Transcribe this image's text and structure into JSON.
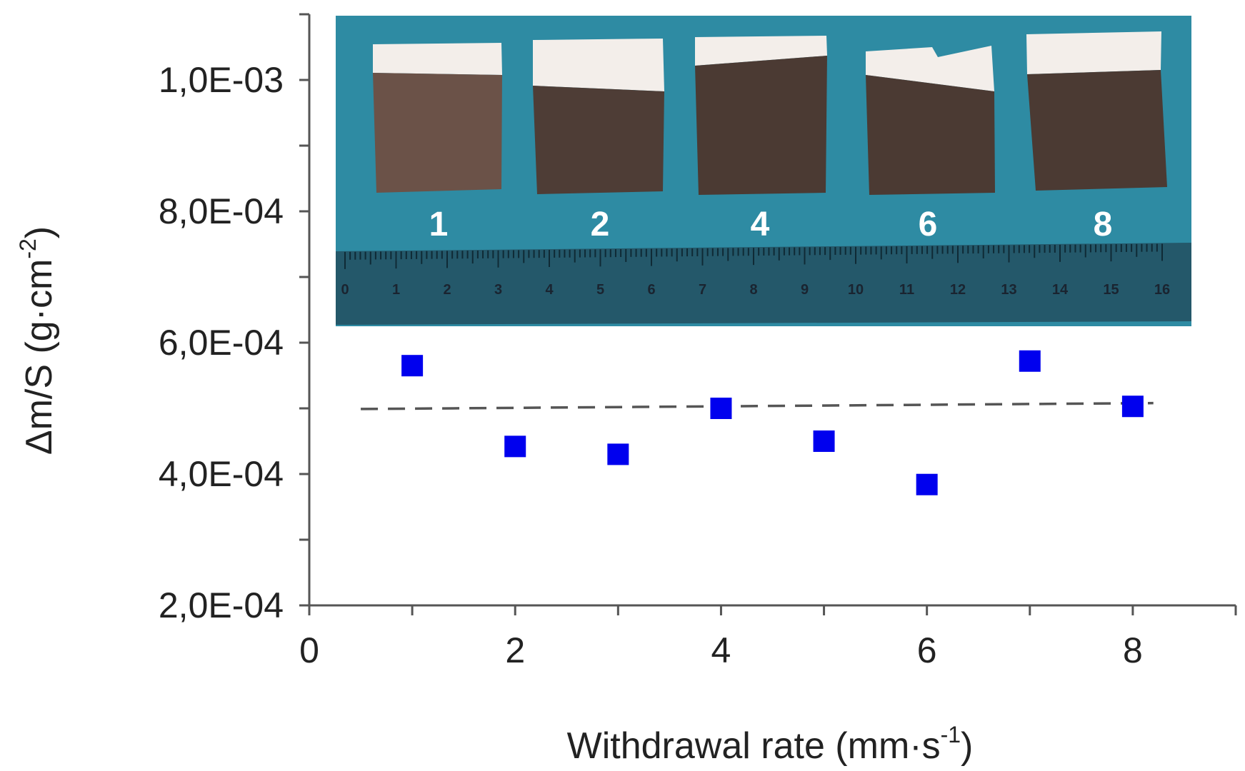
{
  "chart_data": {
    "type": "scatter",
    "x_label_text": "Withdrawal rate (mm·s",
    "x_label_sup": "-1",
    "x_label_end": ")",
    "y_label_text": "Δm/S  (g·cm",
    "y_label_sup": "-2",
    "y_label_end": ")",
    "xlim": [
      0,
      9
    ],
    "ylim": [
      0.0002,
      0.0011
    ],
    "x_ticks": [
      0,
      2,
      4,
      6,
      8
    ],
    "x_tick_labels": [
      "0",
      "2",
      "4",
      "6",
      "8"
    ],
    "y_ticks": [
      0.0002,
      0.0004,
      0.0006,
      0.0008,
      0.001
    ],
    "y_tick_labels": [
      "2,0E-04",
      "4,0E-04",
      "6,0E-04",
      "8,0E-04",
      "1,0E-03"
    ],
    "y_minor_step": 0.0001,
    "x_minor_step": 1,
    "grid": false,
    "marker_color": "#0000ee",
    "points": [
      {
        "x": 1,
        "y": 0.000565
      },
      {
        "x": 2,
        "y": 0.000442
      },
      {
        "x": 3,
        "y": 0.00043
      },
      {
        "x": 4,
        "y": 0.0005
      },
      {
        "x": 5,
        "y": 0.00045
      },
      {
        "x": 6,
        "y": 0.000384
      },
      {
        "x": 7,
        "y": 0.000572
      },
      {
        "x": 8,
        "y": 0.000503
      }
    ],
    "trend_line": {
      "x": [
        0.5,
        8.2
      ],
      "y": [
        0.000499,
        0.000508
      ],
      "style": "dashed",
      "color": "#555555"
    }
  },
  "inset": {
    "background_color": "#2e8ba3",
    "sample_labels": [
      "1",
      "2",
      "4",
      "6",
      "8"
    ],
    "ruler_labels": [
      "0",
      "1",
      "2",
      "3",
      "4",
      "5",
      "6",
      "7",
      "8",
      "9",
      "10",
      "11",
      "12",
      "13",
      "14",
      "15",
      "16"
    ]
  }
}
